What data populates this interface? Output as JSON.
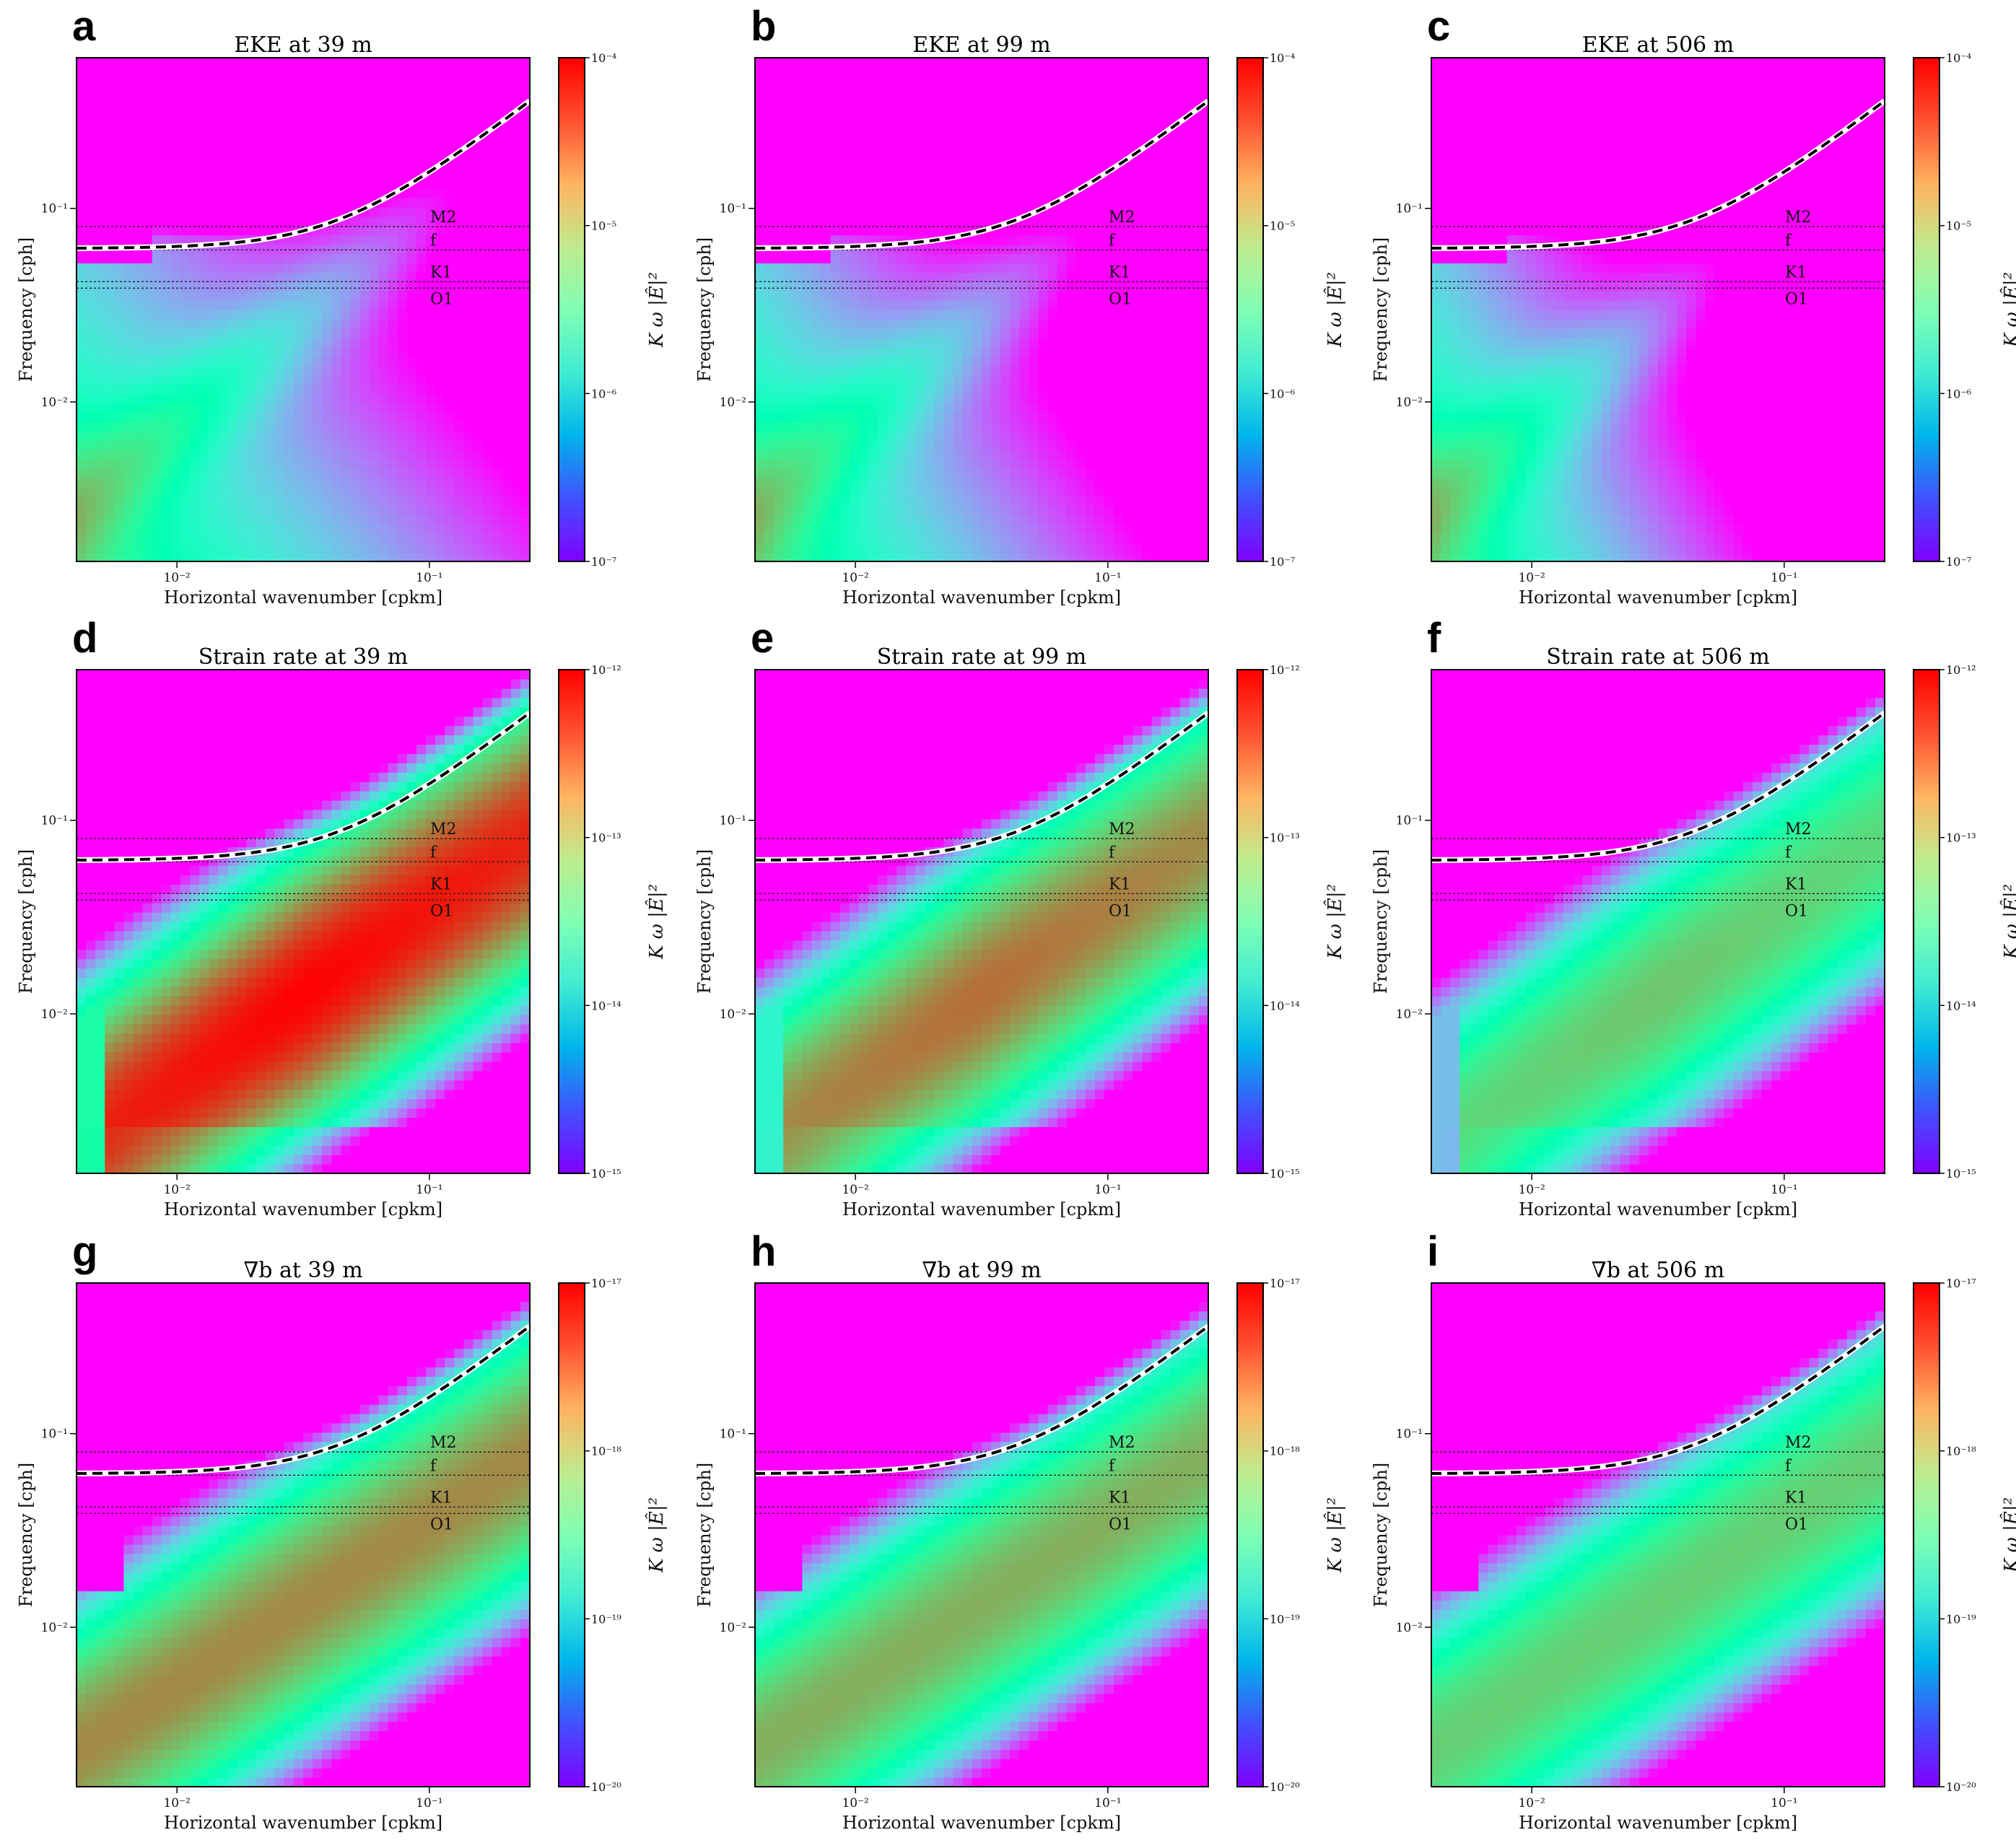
{
  "chart_data": {
    "type": "heatmap",
    "panel_labels": [
      "a",
      "b",
      "c",
      "d",
      "e",
      "f",
      "g",
      "h",
      "i"
    ],
    "titles": [
      "EKE at 39 m",
      "EKE at 99 m",
      "EKE at 506 m",
      "Strain rate at 39 m",
      "Strain rate at 99 m",
      "Strain rate at 506 m",
      "∇b at 39 m",
      "∇b at 99 m",
      "∇b at 506 m"
    ],
    "xlabel": "Horizontal wavenumber [cpkm]",
    "ylabel": "Frequency [cph]",
    "colorbar_label": "K ω |Ê|²",
    "xscale": "log",
    "yscale": "log",
    "xlim": [
      0.004,
      0.25
    ],
    "ylim": [
      0.0015,
      0.6
    ],
    "x_ticks": [
      {
        "value": 0.01,
        "label": "10⁻²"
      },
      {
        "value": 0.1,
        "label": "10⁻¹"
      }
    ],
    "y_ticks": [
      {
        "value": 0.01,
        "label": "10⁻²"
      },
      {
        "value": 0.1,
        "label": "10⁻¹"
      }
    ],
    "colormap": "rainbow",
    "colorbars": [
      {
        "row": "EKE",
        "min_exp": -7,
        "max_exp": -4,
        "labels": [
          "10⁻⁴",
          "10⁻⁵",
          "10⁻⁶",
          "10⁻⁷"
        ]
      },
      {
        "row": "Strain rate",
        "min_exp": -15,
        "max_exp": -12,
        "labels": [
          "10⁻¹²",
          "10⁻¹³",
          "10⁻¹⁴",
          "10⁻¹⁵"
        ]
      },
      {
        "row": "∇b",
        "min_exp": -20,
        "max_exp": -17,
        "labels": [
          "10⁻¹⁷",
          "10⁻¹⁸",
          "10⁻¹⁹",
          "10⁻²⁰"
        ]
      }
    ],
    "tidal_lines": [
      {
        "name": "M2",
        "frequency": 0.0805
      },
      {
        "name": "f",
        "frequency": 0.061
      },
      {
        "name": "K1",
        "frequency": 0.0418
      },
      {
        "name": "O1",
        "frequency": 0.0387
      }
    ],
    "dispersion_curve": {
      "f": 0.062,
      "slope": 1.15,
      "style": "black-white dashed"
    }
  }
}
